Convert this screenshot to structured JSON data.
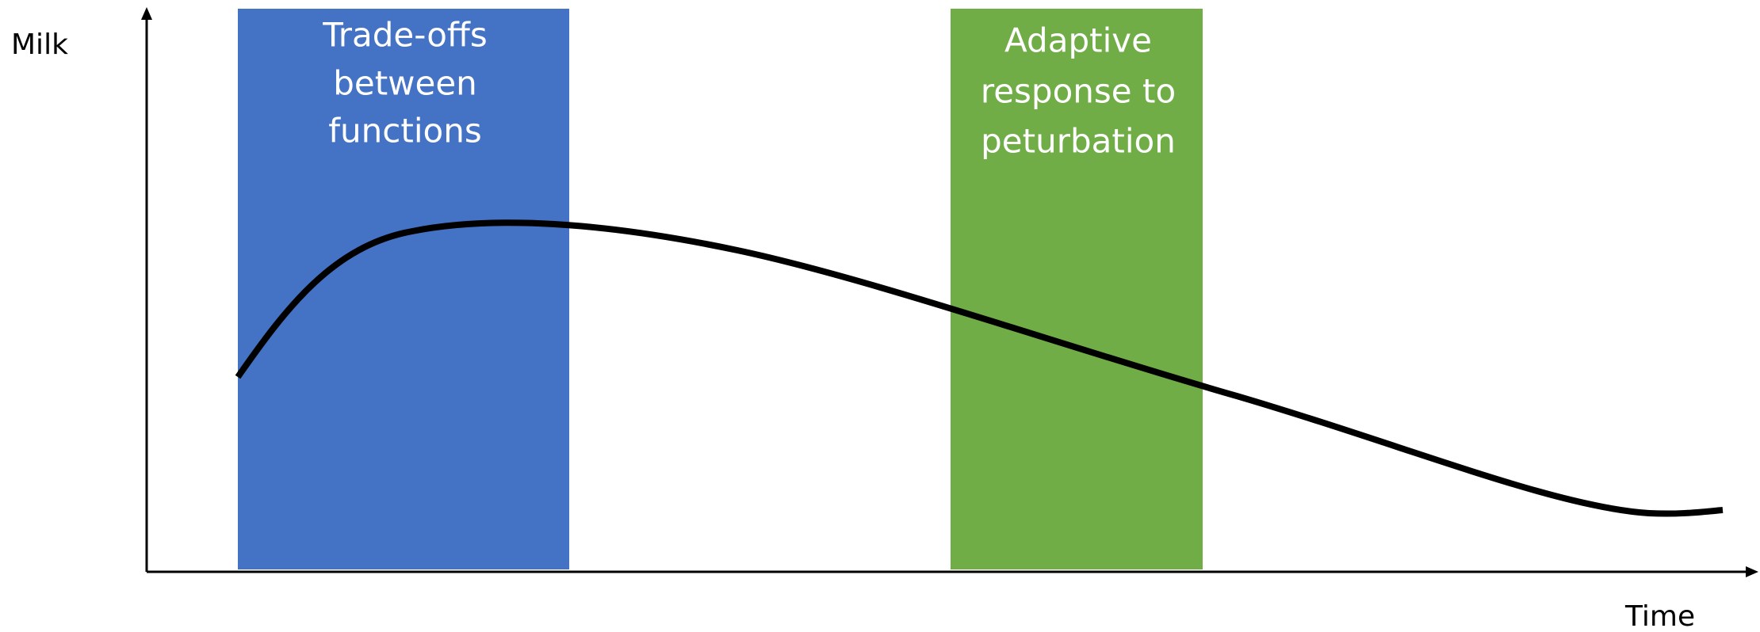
{
  "axes": {
    "y_label": "Milk",
    "x_label": "Time"
  },
  "regions": [
    {
      "lines": [
        "Trade-offs",
        "between",
        "functions"
      ],
      "color": "#4472c4"
    },
    {
      "lines": [
        "Adaptive",
        "response to",
        "peturbation"
      ],
      "color": "#70ad47"
    }
  ]
}
